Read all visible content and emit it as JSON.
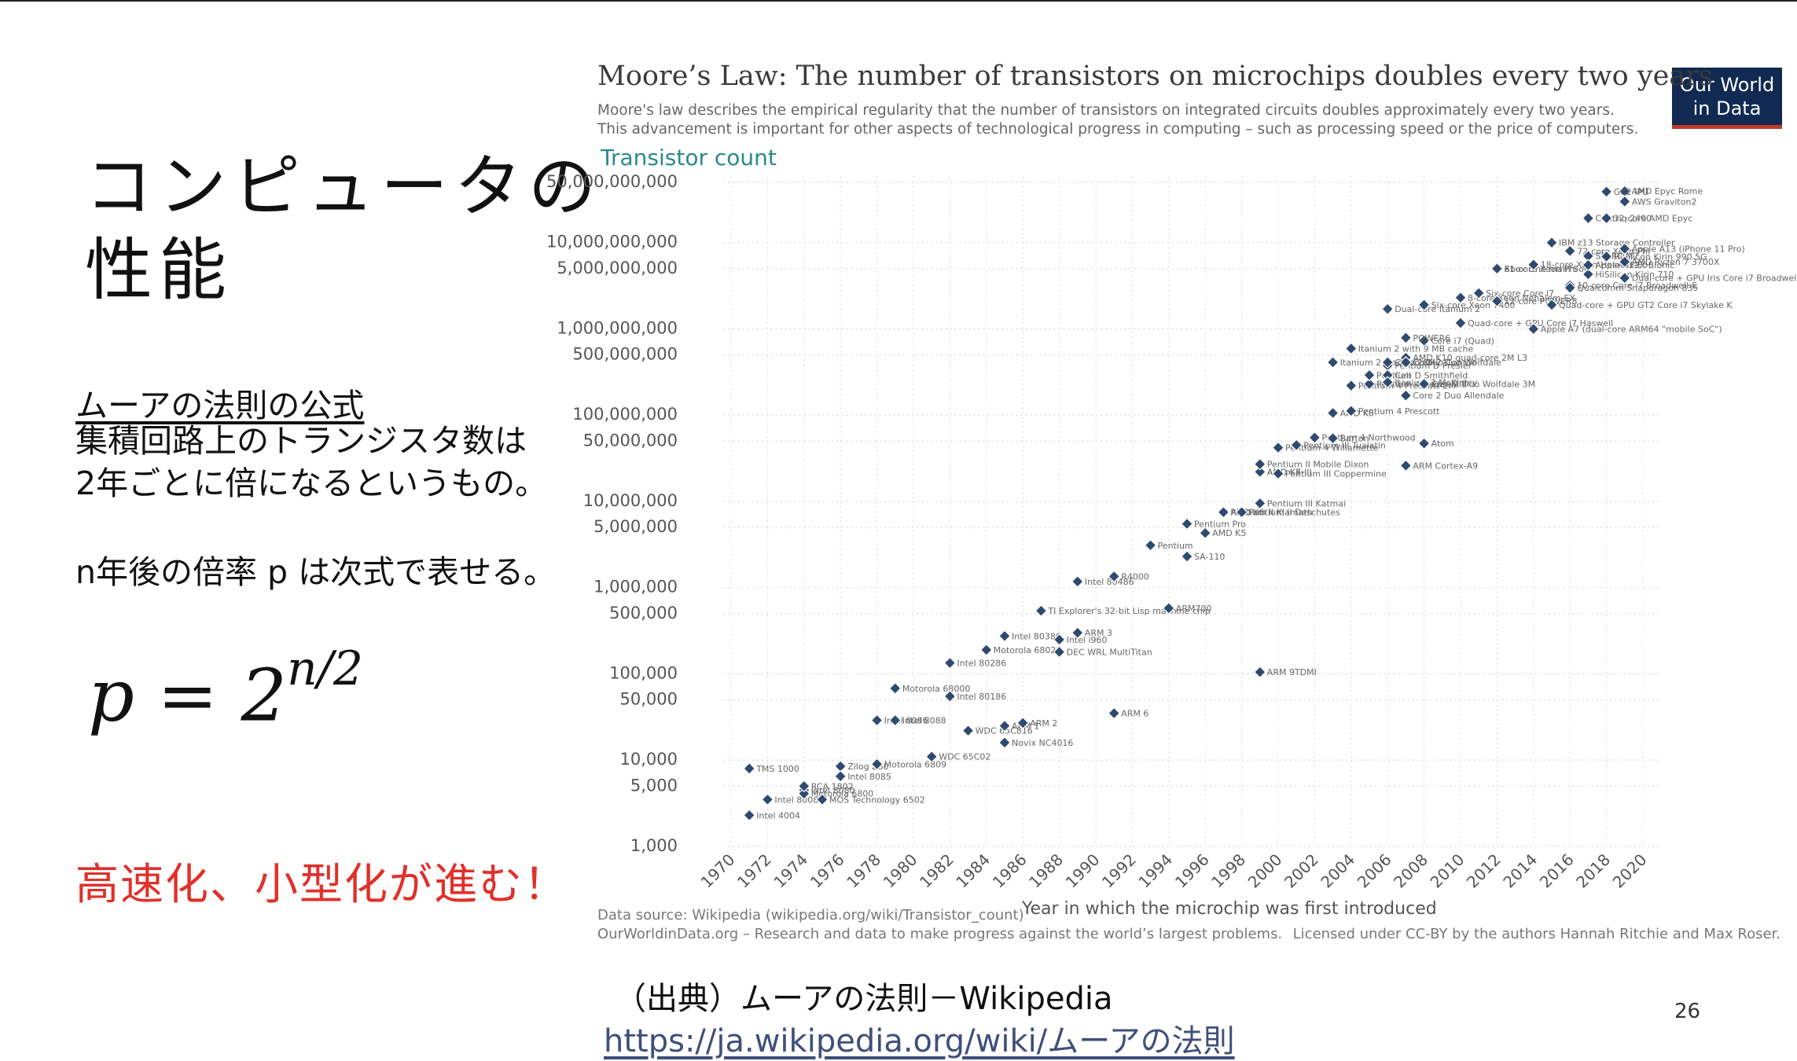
{
  "slide": {
    "title": "コンピュータの\n性能",
    "law_heading": "ムーアの法則の公式",
    "law_body": "集積回路上のトランジスタ数は\n2年ごとに倍になるというもの。",
    "law_n": "n年後の倍率 p は次式で表せる。",
    "formula_base": "p = 2",
    "formula_exp": "n/2",
    "highlight": "高速化、小型化が進む！",
    "source_line": "（出典）ムーアの法則－Wikipedia",
    "source_url": "https://ja.wikipedia.org/wiki/ムーアの法則",
    "page_number": "26",
    "logo_line1": "Our World",
    "logo_line2": "in Data"
  },
  "colors": {
    "marker": "#2f4a6e",
    "title": "#3a3a3a",
    "ylabel": "#2a8a8a",
    "highlight": "#e0302a",
    "logo": "#102a52",
    "logo_accent": "#c0392b"
  },
  "chart_data": {
    "type": "scatter",
    "title": "Moore’s Law: The number of transistors on microchips doubles every two years",
    "subtitle_1": "Moore's law describes the empirical regularity that the number of transistors on integrated circuits doubles approximately every two years.",
    "subtitle_2": "This advancement is important for other aspects of technological progress in computing – such as processing speed or the price of computers.",
    "ylabel": "Transistor count",
    "xlabel": "Year in which the microchip was first introduced",
    "yscale": "log",
    "ylim": [
      1000,
      50000000000
    ],
    "xlim": [
      1970,
      2020
    ],
    "yticks": [
      {
        "v": 1000,
        "label": "1,000"
      },
      {
        "v": 5000,
        "label": "5,000"
      },
      {
        "v": 10000,
        "label": "10,000"
      },
      {
        "v": 50000,
        "label": "50,000"
      },
      {
        "v": 100000,
        "label": "100,000"
      },
      {
        "v": 500000,
        "label": "500,000"
      },
      {
        "v": 1000000,
        "label": "1,000,000"
      },
      {
        "v": 5000000,
        "label": "5,000,000"
      },
      {
        "v": 10000000,
        "label": "10,000,000"
      },
      {
        "v": 50000000,
        "label": "50,000,000"
      },
      {
        "v": 100000000,
        "label": "100,000,000"
      },
      {
        "v": 500000000,
        "label": "500,000,000"
      },
      {
        "v": 1000000000,
        "label": "1,000,000,000"
      },
      {
        "v": 5000000000,
        "label": "5,000,000,000"
      },
      {
        "v": 10000000000,
        "label": "10,000,000,000"
      },
      {
        "v": 50000000000,
        "label": "50,000,000,000"
      }
    ],
    "xticks": [
      1970,
      1972,
      1974,
      1976,
      1978,
      1980,
      1982,
      1984,
      1986,
      1988,
      1990,
      1992,
      1994,
      1996,
      1998,
      2000,
      2002,
      2004,
      2006,
      2008,
      2010,
      2012,
      2014,
      2016,
      2018,
      2020
    ],
    "points": [
      {
        "x": 1971,
        "y": 2300,
        "label": "Intel 4004"
      },
      {
        "x": 1972,
        "y": 3500,
        "label": "Intel 8008"
      },
      {
        "x": 1971,
        "y": 8000,
        "label": "TMS 1000"
      },
      {
        "x": 1974,
        "y": 4500,
        "label": "Intel 8080"
      },
      {
        "x": 1974,
        "y": 4100,
        "label": "Motorola 6800"
      },
      {
        "x": 1975,
        "y": 3500,
        "label": "MOS Technology 6502"
      },
      {
        "x": 1974,
        "y": 5000,
        "label": "RCA 1802"
      },
      {
        "x": 1976,
        "y": 8500,
        "label": "Zilog Z80"
      },
      {
        "x": 1976,
        "y": 6500,
        "label": "Intel 8085"
      },
      {
        "x": 1978,
        "y": 9000,
        "label": "Motorola 6809"
      },
      {
        "x": 1978,
        "y": 29000,
        "label": "Intel 8086"
      },
      {
        "x": 1979,
        "y": 29000,
        "label": "Intel 8088"
      },
      {
        "x": 1979,
        "y": 68000,
        "label": "Motorola 68000"
      },
      {
        "x": 1981,
        "y": 11000,
        "label": "WDC 65C02"
      },
      {
        "x": 1982,
        "y": 55000,
        "label": "Intel 80186"
      },
      {
        "x": 1982,
        "y": 134000,
        "label": "Intel 80286"
      },
      {
        "x": 1983,
        "y": 22000,
        "label": "WDC 65C816"
      },
      {
        "x": 1984,
        "y": 190000,
        "label": "Motorola 68020"
      },
      {
        "x": 1985,
        "y": 275000,
        "label": "Intel 80386"
      },
      {
        "x": 1985,
        "y": 25000,
        "label": "ARM 1"
      },
      {
        "x": 1985,
        "y": 16000,
        "label": "Novix NC4016"
      },
      {
        "x": 1986,
        "y": 27000,
        "label": "ARM 2"
      },
      {
        "x": 1987,
        "y": 540000,
        "label": "TI Explorer's 32-bit Lisp machine chip"
      },
      {
        "x": 1988,
        "y": 250000,
        "label": "Intel i960"
      },
      {
        "x": 1988,
        "y": 180000,
        "label": "DEC WRL MultiTitan"
      },
      {
        "x": 1989,
        "y": 300000,
        "label": "ARM 3"
      },
      {
        "x": 1989,
        "y": 1180000,
        "label": "Intel 80486"
      },
      {
        "x": 1991,
        "y": 1350000,
        "label": "R4000"
      },
      {
        "x": 1991,
        "y": 35000,
        "label": "ARM 6"
      },
      {
        "x": 1993,
        "y": 3100000,
        "label": "Pentium"
      },
      {
        "x": 1994,
        "y": 578000,
        "label": "ARM700"
      },
      {
        "x": 1995,
        "y": 5500000,
        "label": "Pentium Pro"
      },
      {
        "x": 1995,
        "y": 2300000,
        "label": "SA-110"
      },
      {
        "x": 1996,
        "y": 4300000,
        "label": "AMD K5"
      },
      {
        "x": 1997,
        "y": 7500000,
        "label": "AMD K6"
      },
      {
        "x": 1997,
        "y": 7500000,
        "label": "Pentium II Klamath"
      },
      {
        "x": 1998,
        "y": 7500000,
        "label": "Pentium II Deschutes"
      },
      {
        "x": 1999,
        "y": 9500000,
        "label": "Pentium III Katmai"
      },
      {
        "x": 1999,
        "y": 22000000,
        "label": "AMD K6-III"
      },
      {
        "x": 1999,
        "y": 22000000,
        "label": "AMD K7"
      },
      {
        "x": 1999,
        "y": 27000000,
        "label": "Pentium II Mobile Dixon"
      },
      {
        "x": 2000,
        "y": 21000000,
        "label": "Pentium III Coppermine"
      },
      {
        "x": 2000,
        "y": 42000000,
        "label": "Pentium 4 Willamette"
      },
      {
        "x": 2001,
        "y": 45000000,
        "label": "Pentium III Tualatin"
      },
      {
        "x": 2002,
        "y": 55000000,
        "label": "Pentium 4 Northwood"
      },
      {
        "x": 2003,
        "y": 54000000,
        "label": "Barton"
      },
      {
        "x": 1999,
        "y": 105000,
        "label": "ARM 9TDMI"
      },
      {
        "x": 2003,
        "y": 106000000,
        "label": "AMD K8"
      },
      {
        "x": 2004,
        "y": 112000000,
        "label": "Pentium 4 Prescott"
      },
      {
        "x": 2004,
        "y": 220000000,
        "label": "Pentium 4 Prescott-2M"
      },
      {
        "x": 2003,
        "y": 410000000,
        "label": "Itanium 2 Madison 6M"
      },
      {
        "x": 2004,
        "y": 592000000,
        "label": "Itanium 2 with 9 MB cache"
      },
      {
        "x": 2005,
        "y": 230000000,
        "label": "Pentium 4 Cedar Mill"
      },
      {
        "x": 2005,
        "y": 291000000,
        "label": "Pentium D Smithfield"
      },
      {
        "x": 2006,
        "y": 376000000,
        "label": "Pentium D Presler"
      },
      {
        "x": 2006,
        "y": 410000000,
        "label": "Core 2 Duo Conroe"
      },
      {
        "x": 2006,
        "y": 291000000,
        "label": "Cell"
      },
      {
        "x": 2006,
        "y": 241000000,
        "label": "Itanium 2 McKinley"
      },
      {
        "x": 2007,
        "y": 169000000,
        "label": "Core 2 Duo Allendale"
      },
      {
        "x": 2007,
        "y": 463000000,
        "label": "AMD K10 quad-core 2M L3"
      },
      {
        "x": 2007,
        "y": 410000000,
        "label": "Core 2 Duo Wolfdale"
      },
      {
        "x": 2008,
        "y": 230000000,
        "label": "Core 2 Duo Wolfdale 3M"
      },
      {
        "x": 2008,
        "y": 47000000,
        "label": "Atom"
      },
      {
        "x": 2007,
        "y": 26000000,
        "label": "ARM Cortex-A9"
      },
      {
        "x": 2008,
        "y": 731000000,
        "label": "Core i7 (Quad)"
      },
      {
        "x": 2006,
        "y": 1700000000,
        "label": "Dual-core Itanium 2"
      },
      {
        "x": 2007,
        "y": 789000000,
        "label": "POWER6"
      },
      {
        "x": 2008,
        "y": 1900000000,
        "label": "Six-core Xeon 7400"
      },
      {
        "x": 2010,
        "y": 2300000000,
        "label": "8-core Xeon Nehalem-EX"
      },
      {
        "x": 2010,
        "y": 1170000000,
        "label": "Quad-core + GPU Core i7 Haswell"
      },
      {
        "x": 2011,
        "y": 2600000000,
        "label": "Six-core Core i7"
      },
      {
        "x": 2012,
        "y": 5000000000,
        "label": "Xbox One main SoC"
      },
      {
        "x": 2012,
        "y": 2100000000,
        "label": "12-core POWER8"
      },
      {
        "x": 2012,
        "y": 5000000000,
        "label": "61-core Xeon Phi"
      },
      {
        "x": 2014,
        "y": 1000000000,
        "label": "Apple A7 (dual-core ARM64 \"mobile SoC\")"
      },
      {
        "x": 2014,
        "y": 5560000000,
        "label": "18-core Xeon Haswell-E5"
      },
      {
        "x": 2015,
        "y": 1900000000,
        "label": "Quad-core + GPU GT2 Core i7 Skylake K"
      },
      {
        "x": 2015,
        "y": 10000000000,
        "label": "IBM z13 Storage Controller"
      },
      {
        "x": 2016,
        "y": 8000000000,
        "label": "72-core Xeon Phi"
      },
      {
        "x": 2016,
        "y": 3200000000,
        "label": "10-core Core i7 Broadwell-E"
      },
      {
        "x": 2016,
        "y": 3000000000,
        "label": "Qualcomm Snapdragon 835"
      },
      {
        "x": 2017,
        "y": 19200000000,
        "label": "Centriq 2400"
      },
      {
        "x": 2017,
        "y": 7000000000,
        "label": "SPARC M7"
      },
      {
        "x": 2017,
        "y": 4300000000,
        "label": "HiSilicon Kirin 710"
      },
      {
        "x": 2017,
        "y": 5500000000,
        "label": "Apple A12X Bionic"
      },
      {
        "x": 2018,
        "y": 6900000000,
        "label": "HiSilicon Kirin 990 5G"
      },
      {
        "x": 2018,
        "y": 19200000000,
        "label": "32-core AMD Epyc"
      },
      {
        "x": 2019,
        "y": 39540000000,
        "label": "AMD Epyc Rome"
      },
      {
        "x": 2019,
        "y": 30000000000,
        "label": "AWS Graviton2"
      },
      {
        "x": 2019,
        "y": 8500000000,
        "label": "Apple A13 (iPhone 11 Pro)"
      },
      {
        "x": 2019,
        "y": 5990000000,
        "label": "AMD Ryzen 7 3700X"
      },
      {
        "x": 2019,
        "y": 3900000000,
        "label": "Dual-core + GPU Iris Core i7 Broadwell-U"
      },
      {
        "x": 2018,
        "y": 39000000000,
        "label": "GC2 IPU"
      }
    ],
    "footer_source": "Data source: Wikipedia (wikipedia.org/wiki/Transistor_count)",
    "footer_owid": "OurWorldinData.org – Research and data to make progress against the world’s largest problems.",
    "footer_license": "Licensed under CC-BY by the authors Hannah Ritchie and Max Roser."
  }
}
